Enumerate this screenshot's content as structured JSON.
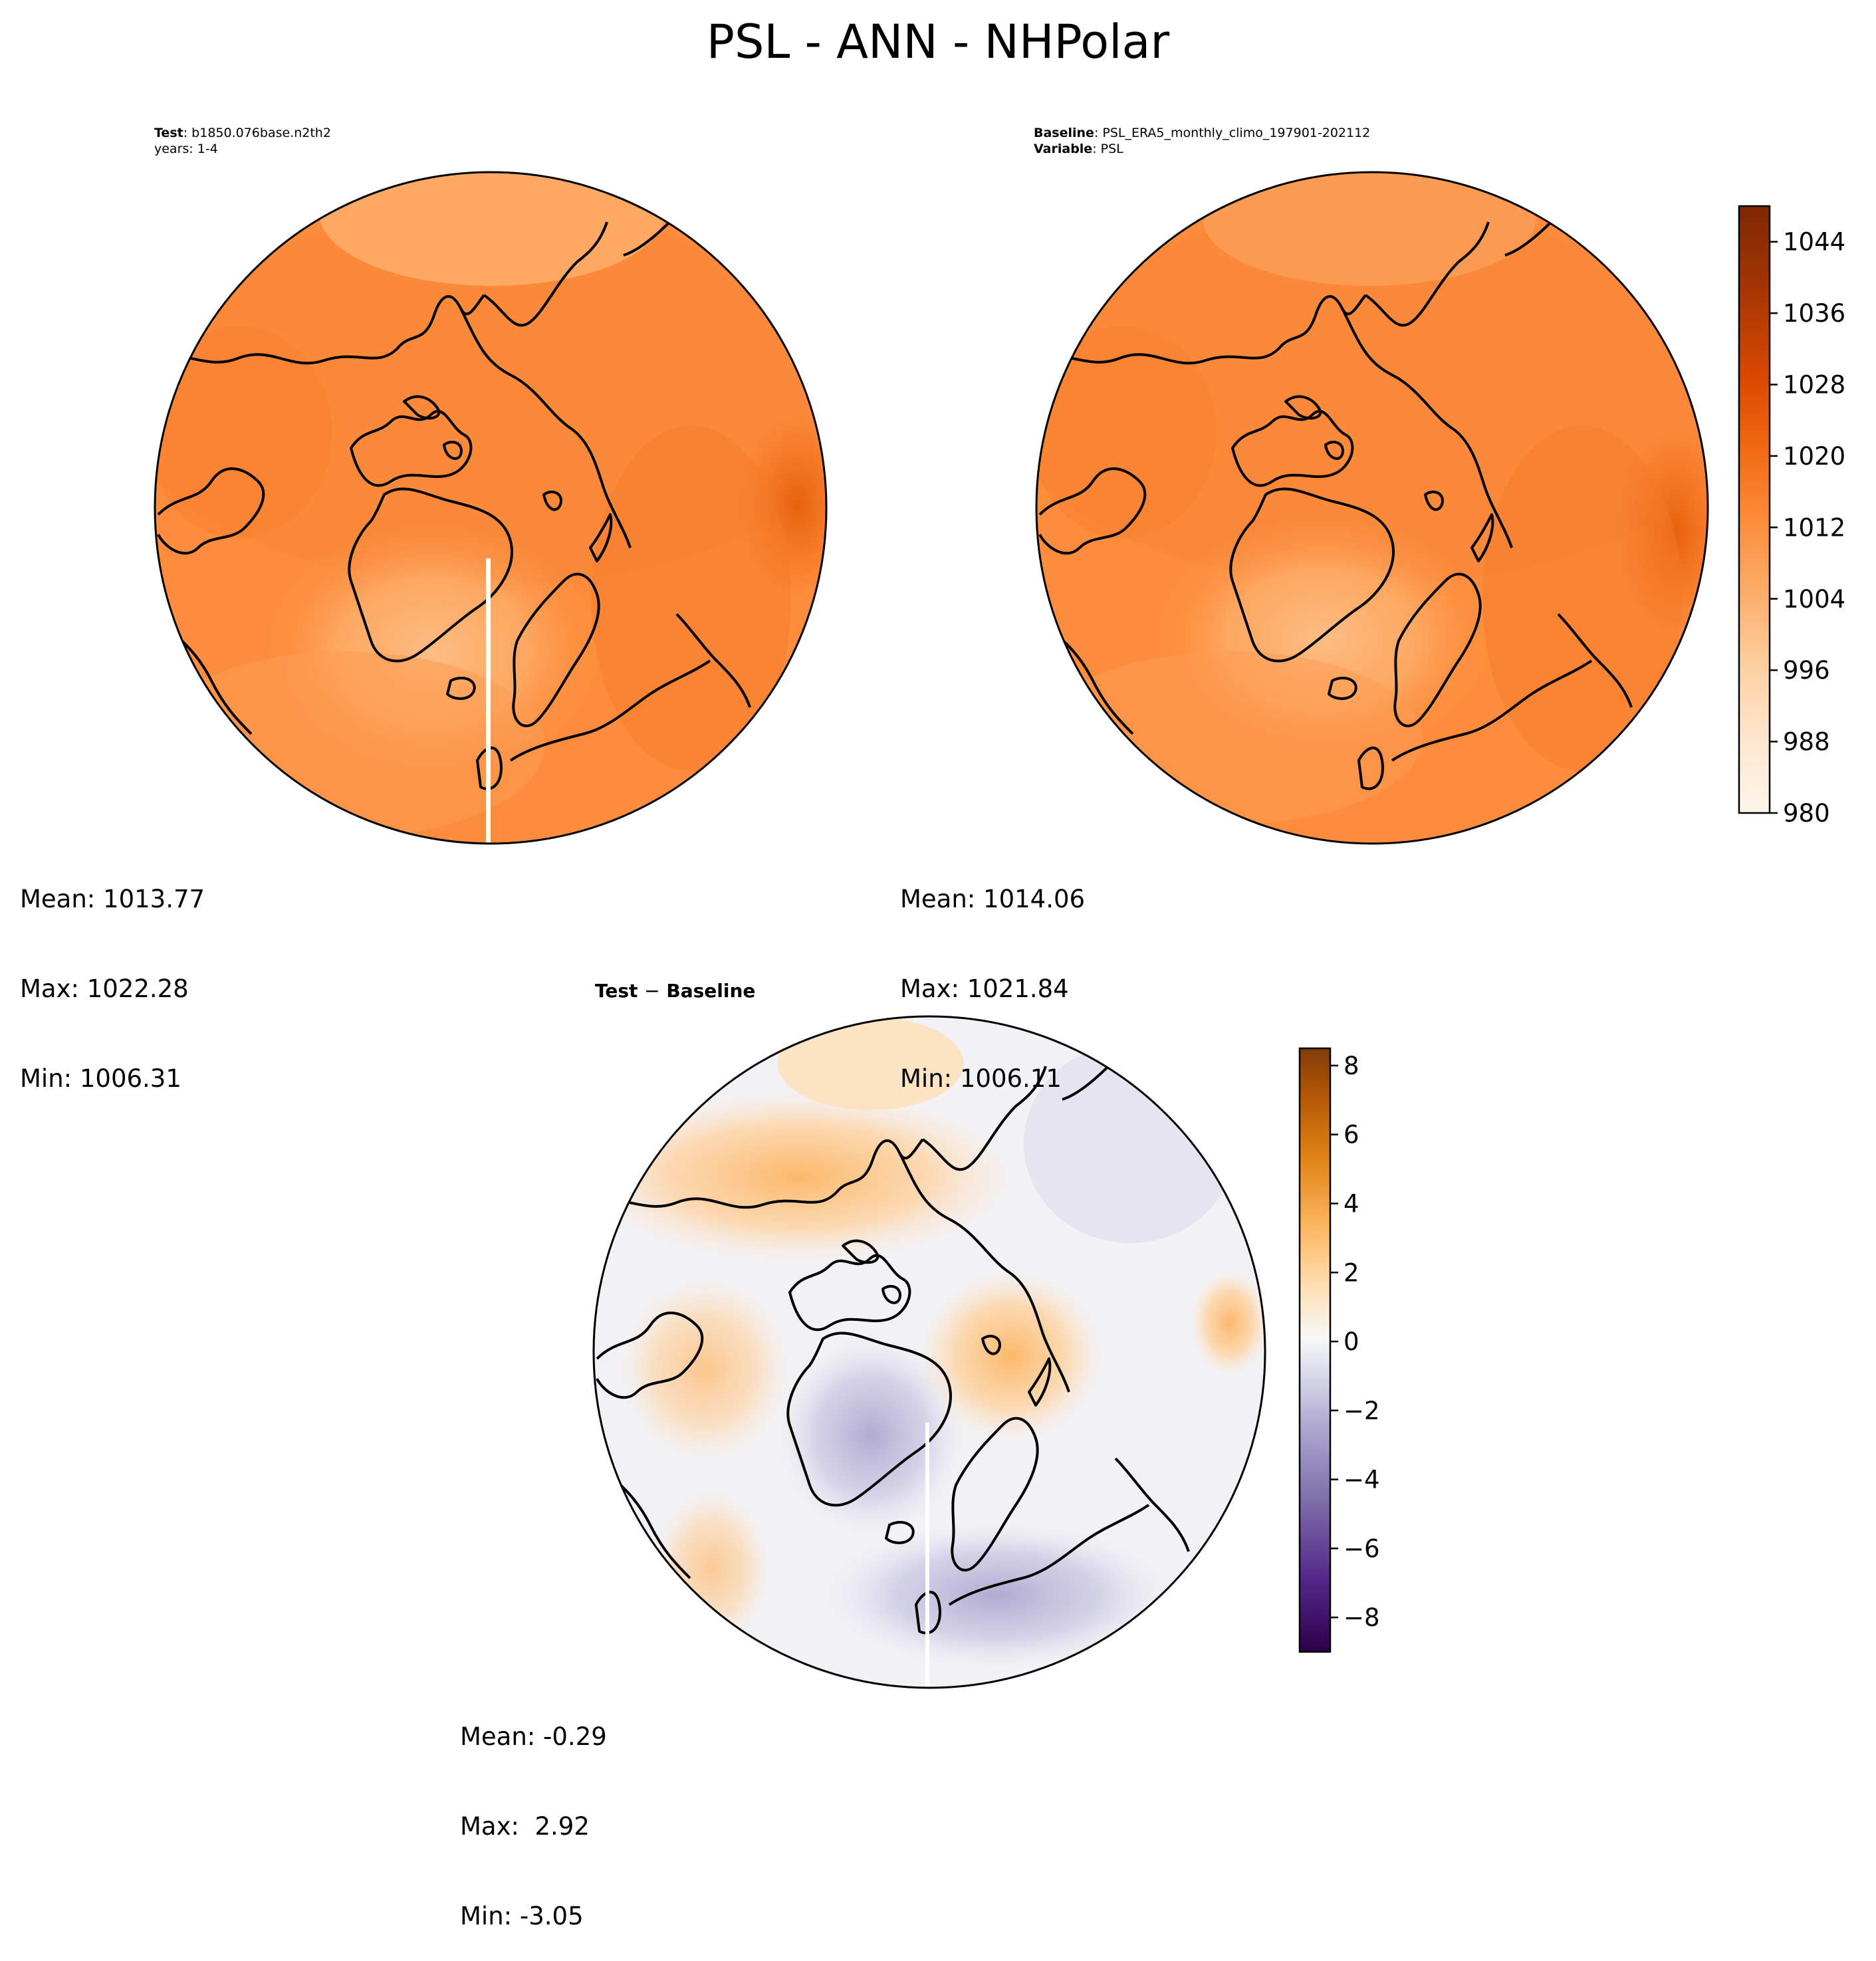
{
  "figure_title": "PSL - ANN - NHPolar",
  "panels": {
    "test": {
      "label_key": "Test",
      "label_value": "b1850.076base.n2th2",
      "line2": "years: 1-4",
      "stats": {
        "mean": "Mean: 1013.77",
        "max": "Max: 1022.28",
        "min": "Min: 1006.31"
      }
    },
    "baseline": {
      "label_key": "Baseline",
      "label_value": "PSL_ERA5_monthly_climo_197901-202112",
      "line2_key": "Variable",
      "line2_value": "PSL",
      "stats": {
        "mean": "Mean: 1014.06",
        "max": "Max: 1021.84",
        "min": "Min: 1006.11"
      }
    },
    "difference": {
      "title_a": "Test",
      "title_sep": "−",
      "title_b": "Baseline",
      "stats": {
        "mean": "Mean: -0.29",
        "max": "Max:  2.92",
        "min": "Min: -3.05"
      }
    }
  },
  "colorbars": {
    "main": {
      "ticks": [
        "980",
        "988",
        "996",
        "1004",
        "1012",
        "1020",
        "1028",
        "1036",
        "1044"
      ],
      "tick_values": [
        980,
        988,
        996,
        1004,
        1012,
        1020,
        1028,
        1036,
        1044
      ],
      "range": [
        980,
        1048
      ],
      "colormap": "Oranges",
      "colors": [
        "#fff5eb",
        "#fee6ce",
        "#fdd0a2",
        "#fdae6b",
        "#fd8d3c",
        "#f16913",
        "#d94801",
        "#a63603",
        "#7f2704"
      ]
    },
    "diff": {
      "ticks": [
        "8",
        "6",
        "4",
        "2",
        "0",
        "−2",
        "−4",
        "−6",
        "−8"
      ],
      "tick_values": [
        8,
        6,
        4,
        2,
        0,
        -2,
        -4,
        -6,
        -8
      ],
      "range": [
        -9,
        8.5
      ],
      "colormap": "PuOr_r",
      "colors": [
        "#2d004b",
        "#542788",
        "#8073ac",
        "#b2abd2",
        "#d8daeb",
        "#f7f7f7",
        "#fee0b6",
        "#fdb863",
        "#e08214",
        "#b35806",
        "#7f3b08"
      ]
    }
  },
  "chart_data": [
    {
      "type": "heatmap",
      "panel": "Test",
      "projection": "North Polar Stereographic",
      "variable": "PSL",
      "season": "ANN",
      "region": "NHPolar",
      "case": "b1850.076base.n2th2",
      "years": "1-4",
      "mean": 1013.77,
      "max": 1022.28,
      "min": 1006.31,
      "colorbar_range": [
        980,
        1048
      ]
    },
    {
      "type": "heatmap",
      "panel": "Baseline",
      "projection": "North Polar Stereographic",
      "variable": "PSL",
      "case": "PSL_ERA5_monthly_climo_197901-202112",
      "mean": 1014.06,
      "max": 1021.84,
      "min": 1006.11,
      "colorbar_range": [
        980,
        1048
      ]
    },
    {
      "type": "heatmap",
      "panel": "Test − Baseline",
      "projection": "North Polar Stereographic",
      "mean": -0.29,
      "max": 2.92,
      "min": -3.05,
      "colorbar_range": [
        -9,
        8.5
      ]
    }
  ]
}
